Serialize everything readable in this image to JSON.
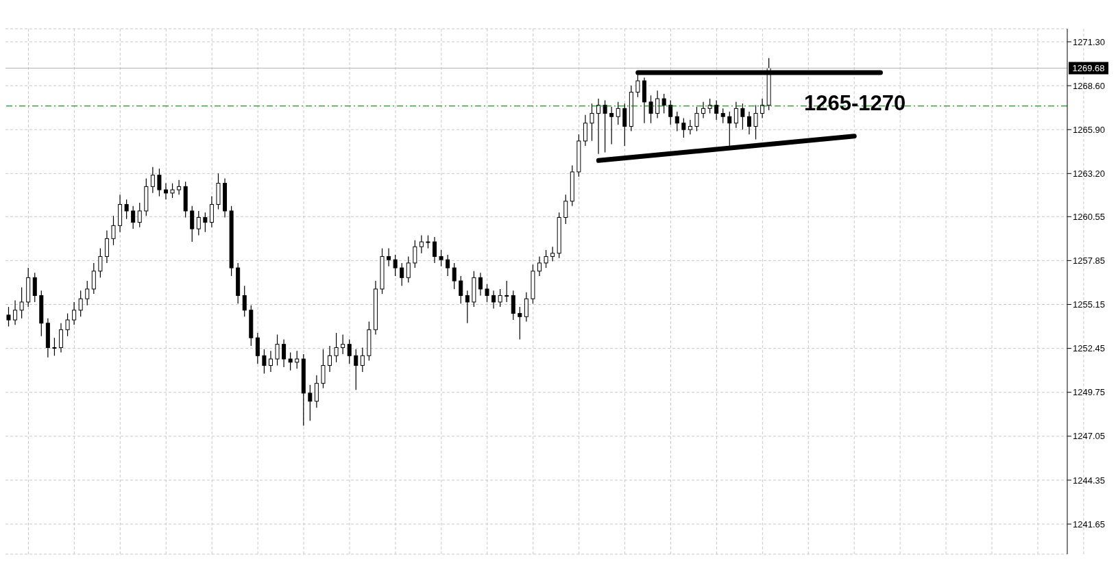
{
  "chart_data": {
    "type": "candlestick",
    "categories": [
      null,
      null,
      null,
      null,
      null,
      null,
      null,
      null,
      null,
      null,
      null,
      null,
      null,
      null,
      null,
      null,
      null,
      null,
      null,
      null,
      null,
      null,
      null,
      null,
      null,
      null,
      null,
      null,
      null,
      null,
      null,
      null,
      null,
      null,
      null,
      null,
      null,
      null,
      null,
      null,
      null,
      null,
      null,
      null,
      null,
      null,
      null,
      null,
      null,
      null,
      null,
      null,
      null,
      null,
      null,
      null,
      null,
      null,
      null,
      null,
      null,
      null,
      null,
      null,
      null,
      null,
      null,
      null,
      null,
      null,
      null,
      null,
      null,
      null,
      null,
      null,
      null,
      null,
      null,
      null,
      null,
      null,
      null,
      null,
      null,
      null,
      null,
      null,
      null,
      null,
      null,
      null,
      null,
      null,
      null,
      null,
      null,
      null,
      null,
      null,
      null,
      null,
      null,
      null,
      null,
      null,
      null,
      null,
      null,
      null,
      null,
      null,
      null,
      null,
      null,
      null,
      null,
      null,
      null,
      null,
      null,
      null,
      null,
      null,
      null,
      null,
      null,
      null,
      null,
      null,
      null,
      null,
      null,
      null,
      null,
      null,
      null,
      null,
      null,
      null,
      null,
      null,
      null,
      null,
      null,
      null,
      null,
      null,
      null,
      null,
      null,
      null,
      null,
      null,
      null,
      null,
      null,
      null,
      null,
      null,
      null,
      null
    ],
    "color": "#000000",
    "ohlc": [
      [
        1254.5,
        1255.0,
        1253.8,
        1254.2
      ],
      [
        1254.2,
        1255.4,
        1253.9,
        1254.8
      ],
      [
        1254.8,
        1256.2,
        1254.3,
        1255.3
      ],
      [
        1255.3,
        1257.4,
        1255.0,
        1256.8
      ],
      [
        1256.8,
        1257.1,
        1255.3,
        1255.7
      ],
      [
        1255.7,
        1256.0,
        1253.2,
        1254.0
      ],
      [
        1254.0,
        1254.3,
        1251.9,
        1252.5
      ],
      [
        1252.5,
        1253.1,
        1252.0,
        1252.5
      ],
      [
        1252.5,
        1254.0,
        1252.2,
        1253.6
      ],
      [
        1253.6,
        1254.6,
        1253.2,
        1254.2
      ],
      [
        1254.2,
        1255.3,
        1253.9,
        1254.8
      ],
      [
        1254.8,
        1256.0,
        1254.4,
        1255.5
      ],
      [
        1255.5,
        1256.6,
        1255.1,
        1256.1
      ],
      [
        1256.1,
        1257.7,
        1255.8,
        1257.2
      ],
      [
        1257.2,
        1258.6,
        1256.8,
        1258.1
      ],
      [
        1258.1,
        1259.7,
        1257.7,
        1259.2
      ],
      [
        1259.2,
        1260.6,
        1258.8,
        1260.0
      ],
      [
        1260.0,
        1261.9,
        1259.6,
        1261.3
      ],
      [
        1261.3,
        1261.6,
        1260.4,
        1260.9
      ],
      [
        1260.9,
        1261.2,
        1259.8,
        1260.2
      ],
      [
        1260.2,
        1261.4,
        1259.9,
        1260.9
      ],
      [
        1260.9,
        1262.9,
        1260.6,
        1262.4
      ],
      [
        1262.4,
        1263.6,
        1262.0,
        1263.1
      ],
      [
        1263.1,
        1263.5,
        1261.8,
        1262.2
      ],
      [
        1262.2,
        1262.6,
        1261.6,
        1262.0
      ],
      [
        1262.0,
        1262.6,
        1261.7,
        1262.2
      ],
      [
        1262.2,
        1262.8,
        1261.9,
        1262.4
      ],
      [
        1262.4,
        1262.7,
        1260.5,
        1260.9
      ],
      [
        1260.9,
        1261.2,
        1259.0,
        1259.8
      ],
      [
        1259.8,
        1260.9,
        1259.4,
        1260.5
      ],
      [
        1260.5,
        1260.8,
        1259.6,
        1260.2
      ],
      [
        1260.2,
        1261.8,
        1259.9,
        1261.3
      ],
      [
        1261.3,
        1263.2,
        1261.0,
        1262.6
      ],
      [
        1262.6,
        1262.9,
        1260.5,
        1260.9
      ],
      [
        1260.9,
        1261.2,
        1256.9,
        1257.4
      ],
      [
        1257.4,
        1257.7,
        1255.2,
        1255.7
      ],
      [
        1255.7,
        1256.3,
        1254.4,
        1254.8
      ],
      [
        1254.8,
        1255.1,
        1252.6,
        1253.1
      ],
      [
        1253.1,
        1253.4,
        1251.5,
        1252.0
      ],
      [
        1252.0,
        1252.4,
        1250.9,
        1251.4
      ],
      [
        1251.4,
        1252.3,
        1251.0,
        1251.8
      ],
      [
        1251.8,
        1253.3,
        1251.4,
        1252.7
      ],
      [
        1252.7,
        1253.0,
        1251.3,
        1251.8
      ],
      [
        1251.8,
        1252.2,
        1251.1,
        1251.6
      ],
      [
        1251.6,
        1252.3,
        1251.2,
        1251.8
      ],
      [
        1251.8,
        1252.1,
        1247.7,
        1249.7
      ],
      [
        1249.7,
        1250.2,
        1248.0,
        1249.2
      ],
      [
        1249.2,
        1250.8,
        1248.8,
        1250.3
      ],
      [
        1250.3,
        1252.4,
        1250.0,
        1251.4
      ],
      [
        1251.4,
        1252.6,
        1251.0,
        1252.0
      ],
      [
        1252.0,
        1253.4,
        1251.6,
        1252.5
      ],
      [
        1252.5,
        1253.3,
        1252.1,
        1252.7
      ],
      [
        1252.7,
        1253.0,
        1251.5,
        1252.0
      ],
      [
        1252.0,
        1252.4,
        1249.9,
        1251.4
      ],
      [
        1251.4,
        1252.5,
        1251.0,
        1252.0
      ],
      [
        1252.0,
        1254.1,
        1251.7,
        1253.6
      ],
      [
        1253.6,
        1256.6,
        1253.3,
        1256.1
      ],
      [
        1256.1,
        1258.6,
        1255.8,
        1258.1
      ],
      [
        1258.1,
        1258.6,
        1257.5,
        1257.9
      ],
      [
        1257.9,
        1258.2,
        1256.9,
        1257.4
      ],
      [
        1257.4,
        1257.7,
        1256.3,
        1256.8
      ],
      [
        1256.8,
        1258.1,
        1256.5,
        1257.7
      ],
      [
        1257.7,
        1259.1,
        1257.4,
        1258.7
      ],
      [
        1258.7,
        1259.4,
        1258.3,
        1259.0
      ],
      [
        1259.0,
        1259.4,
        1258.6,
        1259.0
      ],
      [
        1259.0,
        1259.3,
        1257.7,
        1258.1
      ],
      [
        1258.1,
        1258.5,
        1257.5,
        1257.9
      ],
      [
        1257.9,
        1258.2,
        1256.9,
        1257.4
      ],
      [
        1257.4,
        1257.7,
        1256.1,
        1256.6
      ],
      [
        1256.6,
        1256.9,
        1255.2,
        1255.7
      ],
      [
        1255.7,
        1256.0,
        1254.0,
        1255.3
      ],
      [
        1255.3,
        1257.2,
        1255.0,
        1256.8
      ],
      [
        1256.8,
        1257.1,
        1255.7,
        1256.1
      ],
      [
        1256.1,
        1256.4,
        1255.3,
        1255.7
      ],
      [
        1255.7,
        1256.0,
        1254.9,
        1255.3
      ],
      [
        1255.3,
        1256.1,
        1255.0,
        1255.7
      ],
      [
        1255.7,
        1256.6,
        1255.3,
        1255.7
      ],
      [
        1255.7,
        1256.0,
        1254.2,
        1254.6
      ],
      [
        1254.6,
        1255.0,
        1253.0,
        1254.4
      ],
      [
        1254.4,
        1255.9,
        1254.1,
        1255.5
      ],
      [
        1255.5,
        1257.6,
        1255.2,
        1257.2
      ],
      [
        1257.2,
        1258.1,
        1256.9,
        1257.7
      ],
      [
        1257.7,
        1258.5,
        1257.4,
        1258.1
      ],
      [
        1258.1,
        1258.7,
        1257.8,
        1258.3
      ],
      [
        1258.3,
        1260.8,
        1258.0,
        1260.5
      ],
      [
        1260.5,
        1261.9,
        1260.1,
        1261.5
      ],
      [
        1261.5,
        1263.7,
        1261.2,
        1263.3
      ],
      [
        1263.3,
        1265.6,
        1263.0,
        1265.2
      ],
      [
        1265.2,
        1266.8,
        1264.9,
        1266.3
      ],
      [
        1266.3,
        1267.5,
        1265.2,
        1266.9
      ],
      [
        1266.9,
        1267.8,
        1264.4,
        1267.4
      ],
      [
        1267.4,
        1267.7,
        1264.5,
        1266.9
      ],
      [
        1266.9,
        1267.3,
        1265.0,
        1266.7
      ],
      [
        1266.7,
        1267.6,
        1266.2,
        1267.2
      ],
      [
        1267.2,
        1267.5,
        1264.9,
        1266.1
      ],
      [
        1266.1,
        1268.6,
        1265.8,
        1268.2
      ],
      [
        1268.2,
        1269.3,
        1267.9,
        1268.9
      ],
      [
        1268.9,
        1269.1,
        1266.3,
        1267.6
      ],
      [
        1267.6,
        1268.0,
        1266.3,
        1266.9
      ],
      [
        1266.9,
        1268.3,
        1266.6,
        1267.8
      ],
      [
        1267.8,
        1268.1,
        1266.9,
        1267.4
      ],
      [
        1267.4,
        1267.7,
        1266.2,
        1266.7
      ],
      [
        1266.7,
        1267.0,
        1265.8,
        1266.3
      ],
      [
        1266.3,
        1266.6,
        1265.4,
        1265.9
      ],
      [
        1265.9,
        1266.5,
        1265.6,
        1266.1
      ],
      [
        1266.1,
        1267.3,
        1265.8,
        1266.9
      ],
      [
        1266.9,
        1267.6,
        1266.6,
        1267.2
      ],
      [
        1267.2,
        1267.8,
        1266.9,
        1267.4
      ],
      [
        1267.4,
        1267.7,
        1266.5,
        1266.9
      ],
      [
        1266.9,
        1267.2,
        1266.3,
        1266.7
      ],
      [
        1266.7,
        1267.0,
        1264.9,
        1266.3
      ],
      [
        1266.3,
        1267.6,
        1266.0,
        1267.2
      ],
      [
        1267.2,
        1267.5,
        1265.9,
        1266.7
      ],
      [
        1266.7,
        1267.0,
        1265.6,
        1266.1
      ],
      [
        1266.1,
        1267.4,
        1265.3,
        1266.9
      ],
      [
        1266.9,
        1267.8,
        1266.6,
        1267.4
      ],
      [
        1267.4,
        1270.3,
        1267.1,
        1269.68
      ],
      null,
      null,
      null,
      null,
      null,
      null,
      null,
      null,
      null,
      null,
      null,
      null,
      null,
      null,
      null,
      null,
      null,
      null,
      null,
      null,
      null,
      null,
      null,
      null,
      null,
      null,
      null,
      null,
      null,
      null,
      null,
      null,
      null,
      null,
      null,
      null,
      null,
      null,
      null,
      null,
      null,
      null,
      null,
      null,
      null
    ],
    "series": [
      {
        "type": "line",
        "color": "#000000",
        "values": [
          null,
          null,
          null,
          null,
          null,
          null,
          null,
          null,
          null,
          null,
          null,
          null,
          null,
          null,
          null,
          null,
          null,
          null,
          null,
          null,
          null,
          null,
          null,
          null,
          null,
          null,
          null,
          null,
          null,
          null,
          null,
          null,
          null,
          null,
          null,
          null,
          null,
          null,
          null,
          null,
          null,
          null,
          null,
          null,
          null,
          null,
          null,
          null,
          null,
          null,
          null,
          null,
          null,
          null,
          null,
          null,
          null,
          null,
          null,
          null,
          null,
          null,
          null,
          null,
          null,
          null,
          null,
          null,
          null,
          null,
          null,
          null,
          null,
          null,
          null,
          null,
          null,
          null,
          null,
          null,
          null,
          null,
          null,
          null,
          null,
          null,
          null,
          null,
          null,
          null,
          null,
          null,
          null,
          null,
          null,
          null,
          1269.4,
          null,
          null,
          null,
          null,
          null,
          null,
          null,
          null,
          null,
          null,
          null,
          null,
          null,
          null,
          null,
          null,
          null,
          null,
          null,
          null,
          null,
          null,
          null,
          null,
          null,
          null,
          null,
          null,
          null,
          null,
          null,
          null,
          null,
          null,
          null,
          null,
          1269.4,
          null,
          null,
          null,
          null,
          null,
          null,
          null,
          null,
          null,
          null,
          null,
          null,
          null,
          null,
          null,
          null,
          null,
          null,
          null,
          null,
          null,
          null,
          null,
          null,
          null,
          null,
          null,
          null
        ]
      },
      {
        "type": "line",
        "color": "#000000",
        "values": [
          null,
          null,
          null,
          null,
          null,
          null,
          null,
          null,
          null,
          null,
          null,
          null,
          null,
          null,
          null,
          null,
          null,
          null,
          null,
          null,
          null,
          null,
          null,
          null,
          null,
          null,
          null,
          null,
          null,
          null,
          null,
          null,
          null,
          null,
          null,
          null,
          null,
          null,
          null,
          null,
          null,
          null,
          null,
          null,
          null,
          null,
          null,
          null,
          null,
          null,
          null,
          null,
          null,
          null,
          null,
          null,
          null,
          null,
          null,
          null,
          null,
          null,
          null,
          null,
          null,
          null,
          null,
          null,
          null,
          null,
          null,
          null,
          null,
          null,
          null,
          null,
          null,
          null,
          null,
          null,
          null,
          null,
          null,
          null,
          null,
          null,
          null,
          null,
          null,
          null,
          1264.0,
          null,
          null,
          null,
          null,
          null,
          null,
          null,
          null,
          null,
          null,
          null,
          null,
          null,
          null,
          null,
          null,
          null,
          null,
          null,
          null,
          null,
          null,
          null,
          null,
          null,
          null,
          null,
          null,
          null,
          null,
          null,
          null,
          null,
          null,
          null,
          null,
          null,
          null,
          1265.5,
          null,
          null,
          null,
          null,
          null,
          null,
          null,
          null,
          null,
          null,
          null,
          null,
          null,
          null,
          null,
          null,
          null,
          null,
          null,
          null,
          null,
          null,
          null,
          null,
          null,
          null,
          null,
          null,
          null,
          null,
          null,
          null
        ]
      }
    ],
    "ylim": [
      1239.8,
      1272.1
    ],
    "yticks": [
      {
        "value": 1241.65,
        "label": "1241.65"
      },
      {
        "value": 1244.35,
        "label": "1244.35"
      },
      {
        "value": 1247.05,
        "label": "1247.05"
      },
      {
        "value": 1249.75,
        "label": "1249.75"
      },
      {
        "value": 1252.45,
        "label": "1252.45"
      },
      {
        "value": 1255.15,
        "label": "1255.15"
      },
      {
        "value": 1257.85,
        "label": "1257.85"
      },
      {
        "value": 1260.55,
        "label": "1260.55"
      },
      {
        "value": 1263.2,
        "label": "1263.20"
      },
      {
        "value": 1265.9,
        "label": "1265.90"
      },
      {
        "value": 1268.6,
        "label": "1268.60"
      },
      {
        "value": 1271.3,
        "label": "1271.30"
      }
    ],
    "ref_lines": [
      {
        "axis": "y",
        "value": 1267.35,
        "color": "#006400",
        "line_style": "dashed"
      },
      {
        "axis": "y",
        "value": 1269.68,
        "label": "1269.68",
        "color": "#b4b4b4",
        "line_style": "solid"
      }
    ],
    "annotations": [
      "1265-1270"
    ],
    "grid": true,
    "legend": false,
    "tick_labels": "y"
  }
}
